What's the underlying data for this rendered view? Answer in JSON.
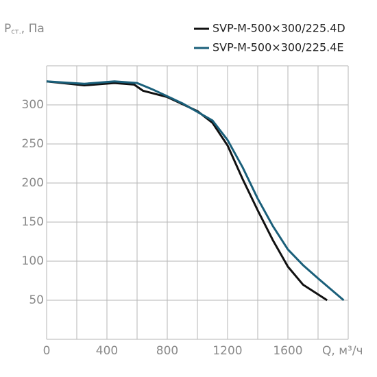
{
  "chart_data": {
    "type": "line",
    "y_label": {
      "main": "P",
      "sub": "ст.",
      "unit": ", Па"
    },
    "x_label": "Q, м³/ч",
    "xlim": [
      0,
      2000
    ],
    "ylim": [
      0,
      350
    ],
    "xticks": [
      0,
      400,
      800,
      1200,
      1600
    ],
    "yticks": [
      50,
      100,
      150,
      200,
      250,
      300
    ],
    "xgrid": [
      0,
      200,
      400,
      600,
      800,
      1000,
      1200,
      1400,
      1600,
      1800,
      2000
    ],
    "ygrid": [
      0,
      50,
      100,
      150,
      200,
      250,
      300,
      350
    ],
    "grid": true,
    "legend": "top-right",
    "series": [
      {
        "name": "SVP-M-500×300/225.4D",
        "color": "#111111",
        "x": [
          0,
          250,
          450,
          580,
          640,
          800,
          1000,
          1100,
          1200,
          1300,
          1400,
          1500,
          1600,
          1700,
          1860
        ],
        "values": [
          330,
          325,
          328,
          326,
          318,
          310,
          292,
          277,
          248,
          205,
          165,
          127,
          93,
          70,
          50
        ]
      },
      {
        "name": "SVP-M-500×300/225.4E",
        "color": "#1a5f7a",
        "x": [
          0,
          250,
          450,
          600,
          700,
          900,
          1100,
          1200,
          1300,
          1400,
          1500,
          1600,
          1700,
          1800,
          1970
        ],
        "values": [
          330,
          327,
          330,
          328,
          320,
          302,
          280,
          255,
          220,
          180,
          145,
          115,
          95,
          78,
          50
        ]
      }
    ]
  }
}
